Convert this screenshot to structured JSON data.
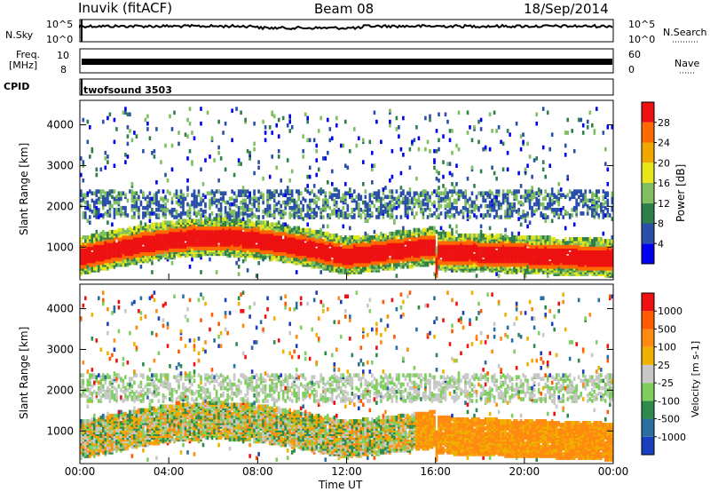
{
  "header": {
    "station": "Inuvik (fitACF)",
    "beam": "Beam 08",
    "date": "18/Sep/2014"
  },
  "top_panels": {
    "nsky_label": "N.Sky",
    "nsky_ticks": [
      "10^5",
      "10^0"
    ],
    "nsearch_label": "N.Search",
    "nsearch_ticks": [
      "10^5",
      "10^0"
    ],
    "freq_label_1": "Freq.",
    "freq_label_2": "[MHz]",
    "freq_ticks": [
      "10",
      "8"
    ],
    "nave_label": "Nave",
    "nave_ticks": [
      "60",
      "0"
    ],
    "cpid_label": "CPID",
    "cpid_value": "twofsound 3503"
  },
  "chart_data": [
    {
      "type": "heatmap",
      "title": "Power",
      "ylabel": "Slant Range [km]",
      "ytick_labels": [
        "1000",
        "2000",
        "3000",
        "4000"
      ],
      "ylim": [
        200,
        4600
      ],
      "xlim_hours": [
        0,
        24
      ],
      "colorbar_label": "Power [dB]",
      "colorbar_ticks": [
        "28",
        "24",
        "20",
        "16",
        "12",
        "8",
        "4"
      ],
      "colorbar_colors": [
        "#0000ee",
        "#2a4fa8",
        "#2e7f4a",
        "#7fbf5f",
        "#e6e61a",
        "#f0a800",
        "#ff6a00",
        "#ee1111"
      ]
    },
    {
      "type": "heatmap",
      "title": "Velocity",
      "ylabel": "Slant Range [km]",
      "ytick_labels": [
        "1000",
        "2000",
        "3000",
        "4000"
      ],
      "ylim": [
        200,
        4600
      ],
      "xlim_hours": [
        0,
        24
      ],
      "colorbar_label": "Velocity [m s-1]",
      "colorbar_ticks": [
        "1000",
        "500",
        "100",
        "25",
        "-25",
        "-100",
        "-500",
        "-1000"
      ],
      "colorbar_colors": [
        "#1a3fbf",
        "#2a6fa0",
        "#2e8a4a",
        "#7fcf5f",
        "#c8c8c8",
        "#f0b000",
        "#ff8a10",
        "#ff5a00",
        "#ee1111"
      ]
    }
  ],
  "xaxis": {
    "label": "Time UT",
    "ticks": [
      "00:00",
      "04:00",
      "08:00",
      "12:00",
      "16:00",
      "20:00",
      "00:00"
    ]
  }
}
